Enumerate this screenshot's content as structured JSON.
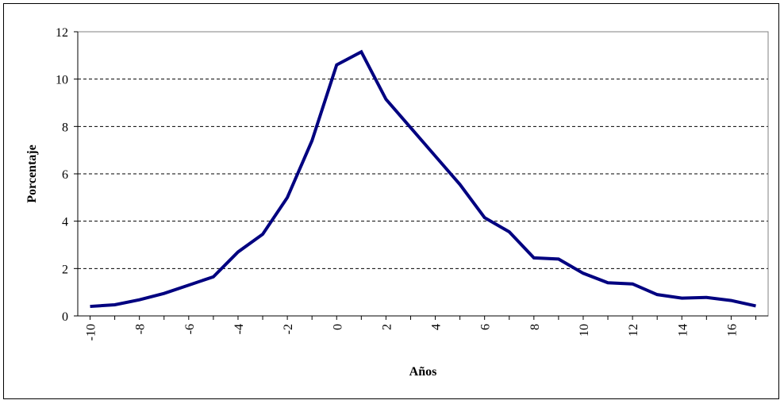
{
  "chart_data": {
    "type": "line",
    "title": "",
    "xlabel": "Años",
    "ylabel": "Porcentaje",
    "x": [
      -10,
      -9,
      -8,
      -7,
      -6,
      -5,
      -4,
      -3,
      -2,
      -1,
      0,
      1,
      2,
      3,
      4,
      5,
      6,
      7,
      8,
      9,
      10,
      11,
      12,
      13,
      14,
      15,
      16,
      17
    ],
    "series": [
      {
        "values": [
          0.4,
          0.47,
          0.68,
          0.95,
          1.3,
          1.65,
          2.7,
          3.45,
          5.0,
          7.4,
          10.6,
          11.15,
          9.15,
          7.95,
          6.75,
          5.55,
          4.15,
          3.55,
          2.45,
          2.4,
          1.8,
          1.4,
          1.35,
          0.9,
          0.75,
          0.78,
          0.65,
          0.42
        ]
      }
    ],
    "xlim": [
      -10.5,
      17.5
    ],
    "ylim": [
      0,
      12
    ],
    "yticks": [
      0,
      2,
      4,
      6,
      8,
      10,
      12
    ],
    "xtick_labels": [
      "-10",
      "-8",
      "-6",
      "-4",
      "-2",
      "0",
      "2",
      "4",
      "6",
      "8",
      "10",
      "12",
      "14",
      "16"
    ],
    "grid": "horizontal dashed",
    "line_color": "#000080"
  }
}
